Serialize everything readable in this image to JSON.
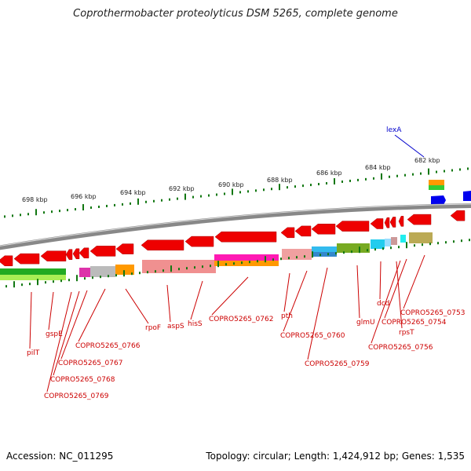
{
  "title": "Coprothermobacter proteolyticus DSM 5265, complete genome",
  "footer": {
    "accession": "Accession: NC_011295",
    "topology": "Topology: circular; Length: 1,424,912 bp; Genes: 1,535"
  },
  "colors": {
    "gene": "#ee0000",
    "backbone": "#808080",
    "scale_ticks": "#008000",
    "label": "#cc0000",
    "highlight_label": "#0000cc",
    "highlight_gene": "#0000ee"
  },
  "scale": {
    "unit": "kbp",
    "labels": [
      "698 kbp",
      "696 kbp",
      "694 kbp",
      "692 kbp",
      "690 kbp",
      "688 kbp",
      "686 kbp",
      "684 kbp",
      "682 kbp"
    ]
  },
  "gene_labels": [
    "lexA",
    "pilT",
    "gspE",
    "COPRO5265_0766",
    "COPRO5265_0767",
    "COPRO5265_0768",
    "COPRO5265_0769",
    "rpoF",
    "aspS",
    "hisS",
    "COPRO5265_0762",
    "pth",
    "COPRO5265_0760",
    "COPRO5265_0759",
    "glmU",
    "dcd",
    "rpsT",
    "COPRO5265_0756",
    "COPRO5265_0754",
    "COPRO5265_0753"
  ]
}
